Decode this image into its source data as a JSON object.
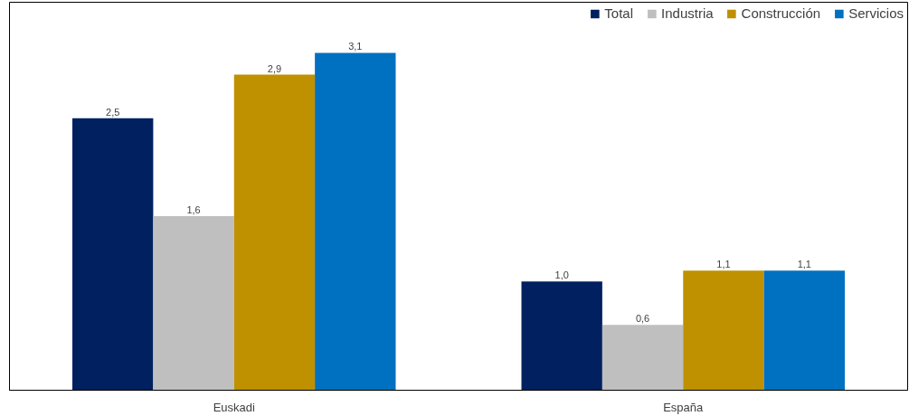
{
  "chart_data": {
    "type": "bar",
    "categories": [
      "Euskadi",
      "España"
    ],
    "series": [
      {
        "name": "Total",
        "color": "#002060",
        "values": [
          2.5,
          1.0
        ],
        "value_labels": [
          "2,5",
          "1,0"
        ]
      },
      {
        "name": "Industria",
        "color": "#bfbfbf",
        "values": [
          1.6,
          0.6
        ],
        "value_labels": [
          "1,6",
          "0,6"
        ]
      },
      {
        "name": "Construcción",
        "color": "#bf9000",
        "values": [
          2.9,
          1.1
        ],
        "value_labels": [
          "2,9",
          "1,1"
        ]
      },
      {
        "name": "Servicios",
        "color": "#0070c0",
        "values": [
          3.1,
          1.1
        ],
        "value_labels": [
          "3,1",
          "1,1"
        ]
      }
    ],
    "legend": "top right",
    "grid": false,
    "tick_labels": "x"
  }
}
